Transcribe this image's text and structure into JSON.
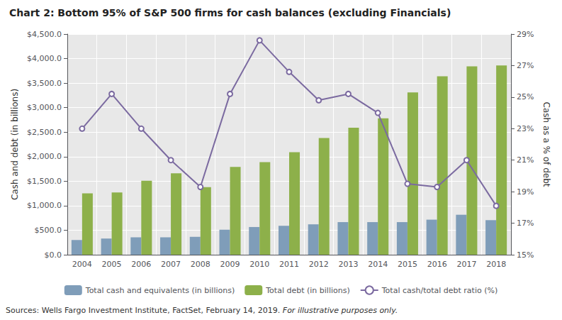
{
  "chart_data": {
    "type": "bar",
    "title": "Chart 2: Bottom 95% of S&P 500 firms for cash balances (excluding Financials)",
    "categories": [
      "2004",
      "2005",
      "2006",
      "2007",
      "2008",
      "2009",
      "2010",
      "2011",
      "2012",
      "2013",
      "2014",
      "2015",
      "2016",
      "2017",
      "2018"
    ],
    "series": [
      {
        "name": "Total cash and equivalents (in billions)",
        "type": "bar",
        "color": "#7f9db9",
        "values": [
          300,
          330,
          355,
          355,
          365,
          510,
          565,
          590,
          620,
          665,
          665,
          665,
          715,
          815,
          705
        ]
      },
      {
        "name": "Total debt (in billions)",
        "type": "bar",
        "color": "#8db04a",
        "values": [
          1250,
          1270,
          1510,
          1660,
          1380,
          1790,
          1890,
          2090,
          2380,
          2590,
          2780,
          3310,
          3640,
          3840,
          3860
        ]
      },
      {
        "name": "Total cash/total debt ratio (%)",
        "type": "line",
        "axis": "y2",
        "color": "#7b6aa0",
        "marker": "circle",
        "values": [
          23.0,
          25.2,
          23.0,
          21.0,
          19.3,
          25.2,
          28.6,
          26.6,
          24.8,
          25.2,
          24.0,
          19.5,
          19.3,
          21.0,
          18.1
        ]
      }
    ],
    "ylabel": "Cash and debt (in billions)",
    "y2label": "Cash as a % of debt",
    "ylim": [
      0,
      4500
    ],
    "yticks": [
      {
        "value": 0,
        "label": "$0.0"
      },
      {
        "value": 500,
        "label": "$500.0"
      },
      {
        "value": 1000,
        "label": "$1,000.0"
      },
      {
        "value": 1500,
        "label": "$1,500.0"
      },
      {
        "value": 2000,
        "label": "$2,000.0"
      },
      {
        "value": 2500,
        "label": "$2,500.0"
      },
      {
        "value": 3000,
        "label": "$3,000.0"
      },
      {
        "value": 3500,
        "label": "$3,500.0"
      },
      {
        "value": 4000,
        "label": "$4,000.0"
      },
      {
        "value": 4500,
        "label": "$4,500.0"
      }
    ],
    "y2lim": [
      15,
      29
    ],
    "y2ticks": [
      {
        "value": 15,
        "label": "15%"
      },
      {
        "value": 17,
        "label": "17%"
      },
      {
        "value": 19,
        "label": "19%"
      },
      {
        "value": 21,
        "label": "21%"
      },
      {
        "value": 23,
        "label": "23%"
      },
      {
        "value": 25,
        "label": "25%"
      },
      {
        "value": 27,
        "label": "27%"
      },
      {
        "value": 29,
        "label": "29%"
      }
    ],
    "grid": true,
    "legend": "bottom",
    "annotations": [
      "Sources: Wells Fargo Investment Institute, FactSet, February 14, 2019.",
      "For illustrative purposes only."
    ]
  }
}
